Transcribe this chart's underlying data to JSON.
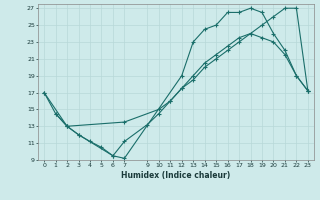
{
  "xlabel": "Humidex (Indice chaleur)",
  "bg_color": "#ceeaea",
  "grid_color": "#b8d8d8",
  "line_color": "#1a6e6a",
  "xlim": [
    -0.5,
    23.5
  ],
  "ylim": [
    9,
    27.5
  ],
  "xticks": [
    0,
    1,
    2,
    3,
    4,
    5,
    6,
    7,
    9,
    10,
    11,
    12,
    13,
    14,
    15,
    16,
    17,
    18,
    19,
    20,
    21,
    22,
    23
  ],
  "yticks": [
    9,
    11,
    13,
    15,
    17,
    19,
    21,
    23,
    25,
    27
  ],
  "curve1_x": [
    0,
    1,
    2,
    3,
    4,
    5,
    6,
    7,
    12,
    13,
    14,
    15,
    16,
    17,
    18,
    19,
    20,
    21,
    22,
    23
  ],
  "curve1_y": [
    17,
    14.5,
    13.0,
    12.0,
    11.2,
    10.5,
    9.5,
    9.2,
    19.0,
    23.0,
    24.5,
    25.0,
    26.5,
    26.5,
    27.0,
    26.5,
    24.0,
    22.0,
    19.0,
    17.2
  ],
  "curve2_x": [
    1,
    2,
    3,
    6,
    7,
    9,
    10,
    11,
    12,
    13,
    14,
    15,
    16,
    17,
    18,
    19,
    20,
    21,
    22,
    23
  ],
  "curve2_y": [
    14.5,
    13.0,
    12.0,
    9.5,
    11.2,
    13.2,
    14.5,
    16.0,
    17.5,
    19.0,
    20.5,
    21.5,
    22.5,
    23.5,
    24.0,
    23.5,
    23.0,
    21.5,
    19.0,
    17.2
  ],
  "curve3_x": [
    0,
    2,
    7,
    10,
    11,
    12,
    13,
    14,
    15,
    16,
    17,
    18,
    19,
    20,
    21,
    22,
    23
  ],
  "curve3_y": [
    17,
    13.0,
    13.5,
    15.0,
    16.0,
    17.5,
    18.5,
    20.0,
    21.0,
    22.0,
    23.0,
    24.0,
    25.0,
    26.0,
    27.0,
    27.0,
    17.2
  ]
}
